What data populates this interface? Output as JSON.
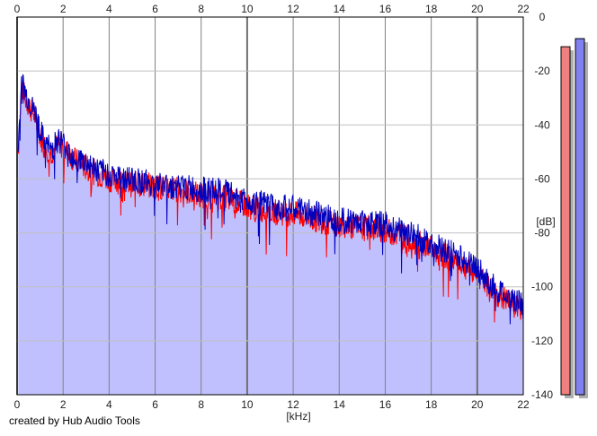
{
  "footer_text": "created by Hub Audio Tools",
  "colors": {
    "plot_background": "#ffffff",
    "grid_major": "#808080",
    "grid_minor": "#c0c0c0",
    "fill": "#c0c0ff",
    "left_channel": "#ff0000",
    "right_channel": "#0000c0",
    "meter_left": "#f08080",
    "meter_right": "#8080f0",
    "meter_shadow": "#b0b0b0"
  },
  "chart_data": {
    "type": "area",
    "xlabel": "[kHz]",
    "ylabel": "[dB]",
    "x_ticks": [
      "0",
      "2",
      "4",
      "6",
      "8",
      "10",
      "12",
      "14",
      "16",
      "18",
      "20",
      "22"
    ],
    "y_ticks": [
      "0",
      "-20",
      "-40",
      "-60",
      "-80",
      "-100",
      "-120",
      "-140"
    ],
    "xlim": [
      0,
      22
    ],
    "ylim": [
      -140,
      0
    ],
    "grid": true,
    "series": [
      {
        "x": [
          0.05,
          0.2,
          0.4,
          0.6,
          0.8,
          1.0,
          1.2,
          1.5,
          1.8,
          2.0,
          2.5,
          3.0,
          3.5,
          4.0,
          4.5,
          5.0,
          5.5,
          6.0,
          7.0,
          8.0,
          9.0,
          10.0,
          11.0,
          12.0,
          13.0,
          14.0,
          15.0,
          16.0,
          17.0,
          18.0,
          19.0,
          20.0,
          20.5,
          21.0,
          21.5,
          22.0
        ],
        "values": [
          -50,
          -26,
          -31,
          -34,
          -37,
          -44,
          -48,
          -50,
          -47,
          -48,
          -53,
          -56,
          -58,
          -60,
          -61,
          -62,
          -62,
          -63,
          -64,
          -66,
          -67,
          -70,
          -72,
          -73,
          -75,
          -77,
          -78,
          -79,
          -82,
          -86,
          -90,
          -95,
          -101,
          -104,
          -106,
          -109
        ]
      },
      {
        "x": [
          0.05,
          0.2,
          0.4,
          0.6,
          0.8,
          1.0,
          1.2,
          1.5,
          1.8,
          2.0,
          2.5,
          3.0,
          3.5,
          4.0,
          4.5,
          5.0,
          5.5,
          6.0,
          7.0,
          8.0,
          9.0,
          10.0,
          11.0,
          12.0,
          13.0,
          14.0,
          15.0,
          16.0,
          17.0,
          18.0,
          19.0,
          20.0,
          20.5,
          21.0,
          21.5,
          22.0
        ],
        "values": [
          -48,
          -24,
          -29,
          -33,
          -36,
          -42,
          -47,
          -49,
          -45,
          -47,
          -52,
          -54,
          -57,
          -58,
          -60,
          -60,
          -61,
          -62,
          -63,
          -64,
          -65,
          -68,
          -70,
          -71,
          -73,
          -75,
          -76,
          -77,
          -80,
          -84,
          -88,
          -93,
          -99,
          -102,
          -104,
          -107
        ]
      }
    ],
    "meters": [
      {
        "level_db": -11
      },
      {
        "level_db": -8
      }
    ]
  }
}
